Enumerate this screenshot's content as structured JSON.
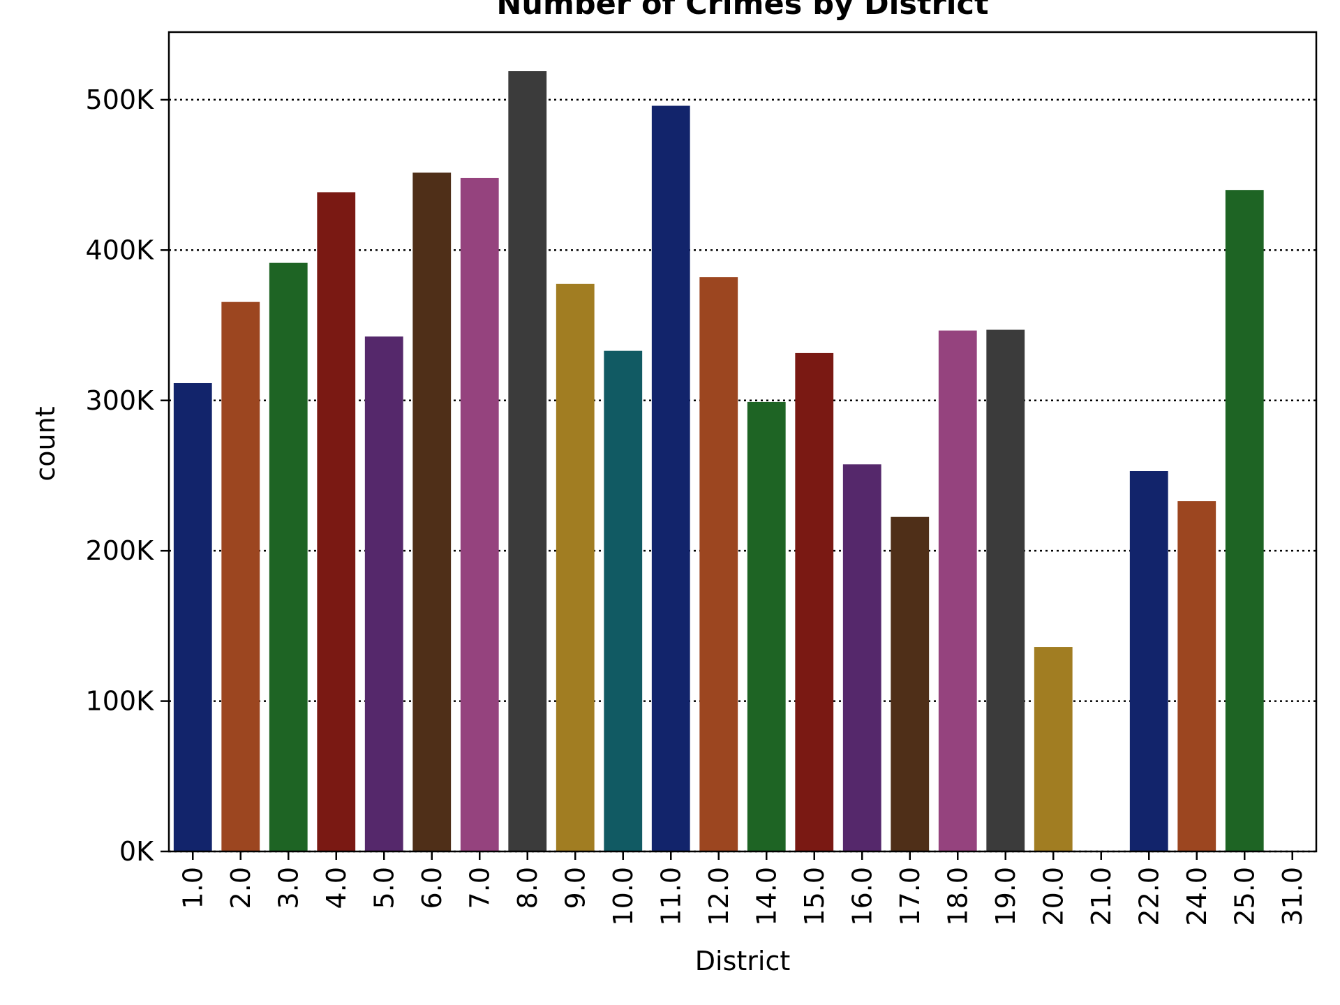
{
  "chart_data": {
    "type": "bar",
    "title": "Number of Crimes by District",
    "xlabel": "District",
    "ylabel": "count",
    "categories": [
      "1.0",
      "2.0",
      "3.0",
      "4.0",
      "5.0",
      "6.0",
      "7.0",
      "8.0",
      "9.0",
      "10.0",
      "11.0",
      "12.0",
      "14.0",
      "15.0",
      "16.0",
      "17.0",
      "18.0",
      "19.0",
      "20.0",
      "21.0",
      "22.0",
      "24.0",
      "25.0",
      "31.0"
    ],
    "values": [
      311500,
      365500,
      391500,
      438500,
      342500,
      451500,
      448000,
      519000,
      377500,
      333000,
      496000,
      382000,
      299000,
      331500,
      257500,
      222500,
      346500,
      347000,
      136000,
      4,
      253000,
      233000,
      440000,
      12
    ],
    "colors": [
      "#12246b",
      "#9c4620",
      "#1e6424",
      "#7a1913",
      "#55286b",
      "#4f2f18",
      "#95437e",
      "#3b3b3b",
      "#a17d22",
      "#115a63",
      "#12246b",
      "#9c4620",
      "#1e6424",
      "#7a1913",
      "#55286b",
      "#4f2f18",
      "#95437e",
      "#3b3b3b",
      "#a17d22",
      "#115a63",
      "#12246b",
      "#9c4620",
      "#1e6424",
      "#7a1913"
    ],
    "ylim": [
      0,
      545000
    ],
    "yticks": [
      0,
      100000,
      200000,
      300000,
      400000,
      500000
    ],
    "ytick_labels": [
      "0K",
      "100K",
      "200K",
      "300K",
      "400K",
      "500K"
    ],
    "grid": "horizontal dotted",
    "legend": "none"
  }
}
